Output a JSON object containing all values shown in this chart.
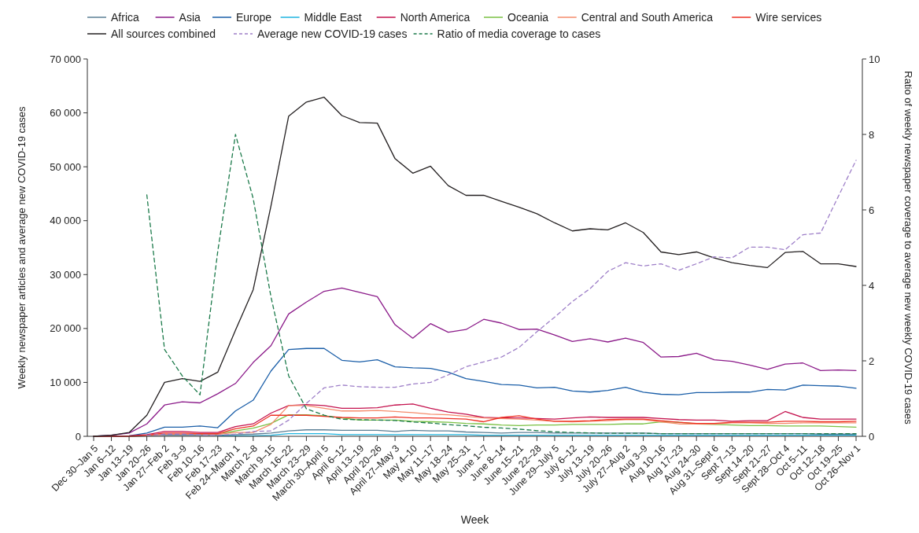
{
  "chart_data": {
    "type": "line",
    "xlabel": "Week",
    "ylabel": "Weekly newspaper articles and average new COVID-19 cases",
    "y2label": "Ratio of weekly newspaper coverage to average new weekly COVID-19 cases",
    "categories": [
      "Dec 30–Jan 5",
      "Jan 6–12",
      "Jan 13–19",
      "Jan 20–26",
      "Jan 27–Feb 2",
      "Feb 3–9",
      "Feb 10–16",
      "Feb 17–23",
      "Feb 24–March 1",
      "March 2–8",
      "March 9–15",
      "March 16–22",
      "March 23–29",
      "March 30–April 5",
      "April 6–12",
      "April 13–19",
      "April 20–26",
      "April 27–May 3",
      "May 4–10",
      "May 11–17",
      "May 18–24",
      "May 25–31",
      "June 1–7",
      "June 8–14",
      "June 15–21",
      "June 22–28",
      "June 29–July 5",
      "July 6–12",
      "July 13–19",
      "July 20–26",
      "July 27–Aug 2",
      "Aug 3–9",
      "Aug 10–16",
      "Aug 17–23",
      "Aug 24–30",
      "Aug 31–Sept 6",
      "Sept 7–13",
      "Sept 14–20",
      "Sept 21–27",
      "Sept 28–Oct 4",
      "Oct 5–11",
      "Oct 12–18",
      "Oct 19–25",
      "Oct 26–Nov 1"
    ],
    "ylim": [
      0,
      70000
    ],
    "yticks": [
      0,
      {
        "value": 10000,
        "label": "10 000"
      },
      {
        "value": 20000,
        "label": "20 000"
      },
      {
        "value": 30000,
        "label": "30 000"
      },
      {
        "value": 40000,
        "label": "40 000"
      },
      {
        "value": 50000,
        "label": "50 000"
      },
      {
        "value": 60000,
        "label": "60 000"
      },
      {
        "value": 70000,
        "label": "70 000"
      }
    ],
    "y2lim": [
      0,
      10
    ],
    "y2ticks": [
      0,
      2,
      4,
      6,
      8,
      10
    ],
    "grid": false,
    "legend": "top",
    "marker": "none",
    "series": [
      {
        "name": "Africa",
        "color": "#5b7f95",
        "values": [
          0,
          0,
          0,
          100,
          200,
          200,
          200,
          200,
          300,
          400,
          600,
          1000,
          1200,
          1200,
          1100,
          1100,
          1100,
          900,
          1100,
          1000,
          1000,
          800,
          700,
          600,
          700,
          700,
          600,
          600,
          600,
          600,
          600,
          600,
          500,
          500,
          500,
          500,
          500,
          500,
          500,
          500,
          500,
          400,
          400,
          400
        ]
      },
      {
        "name": "Asia",
        "color": "#8b1a89",
        "values": [
          0,
          200,
          600,
          2300,
          5800,
          6400,
          6200,
          7900,
          9800,
          13700,
          16800,
          22700,
          24900,
          26900,
          27500,
          26700,
          25900,
          20700,
          18200,
          20900,
          19300,
          19800,
          21700,
          21000,
          19800,
          19900,
          18800,
          17600,
          18100,
          17500,
          18200,
          17400,
          14700,
          14800,
          15400,
          14200,
          13900,
          13200,
          12400,
          13400,
          13600,
          12200,
          12300,
          12200
        ]
      },
      {
        "name": "Europe",
        "color": "#1a5ea8",
        "values": [
          0,
          0,
          100,
          600,
          1700,
          1700,
          1900,
          1600,
          4700,
          6700,
          12100,
          16100,
          16300,
          16300,
          14100,
          13800,
          14200,
          12900,
          12700,
          12600,
          11900,
          10700,
          10200,
          9600,
          9500,
          9000,
          9100,
          8400,
          8200,
          8500,
          9100,
          8200,
          7800,
          7700,
          8100,
          8100,
          8200,
          8200,
          8700,
          8600,
          9500,
          9400,
          9300,
          8900
        ]
      },
      {
        "name": "Middle East",
        "color": "#1fb5e0",
        "values": [
          null,
          null,
          null,
          null,
          null,
          null,
          null,
          100,
          100,
          100,
          200,
          500,
          500,
          500,
          300,
          300,
          300,
          300,
          300,
          300,
          300,
          300,
          200,
          200,
          200,
          200,
          200,
          200,
          200,
          200,
          200,
          200,
          200,
          200,
          200,
          200,
          200,
          200,
          200,
          200,
          200,
          200,
          200,
          200
        ]
      },
      {
        "name": "North America",
        "color": "#c4124e",
        "values": [
          0,
          0,
          100,
          300,
          900,
          900,
          700,
          700,
          1800,
          2300,
          4300,
          5700,
          5900,
          5700,
          5200,
          5200,
          5300,
          5800,
          6000,
          5200,
          4500,
          4100,
          3500,
          3400,
          3400,
          3300,
          3200,
          3400,
          3600,
          3500,
          3500,
          3500,
          3300,
          3100,
          3000,
          3000,
          2800,
          2900,
          2900,
          4600,
          3500,
          3200,
          3200,
          3200
        ]
      },
      {
        "name": "Oceania",
        "color": "#7ac143",
        "values": [
          null,
          null,
          null,
          null,
          null,
          null,
          400,
          400,
          1000,
          1500,
          2400,
          4000,
          4000,
          3800,
          3400,
          3000,
          3000,
          3000,
          2800,
          2700,
          2600,
          2400,
          2300,
          2100,
          2000,
          2100,
          2100,
          2200,
          2200,
          2200,
          2300,
          2300,
          2700,
          2600,
          2300,
          2200,
          2100,
          2000,
          2000,
          1900,
          1900,
          1900,
          1800,
          1700
        ]
      },
      {
        "name": "Central and South America",
        "color": "#f58b6b",
        "values": [
          null,
          null,
          0,
          100,
          400,
          400,
          400,
          400,
          700,
          700,
          2200,
          5700,
          5700,
          5200,
          4700,
          4700,
          4800,
          4600,
          4400,
          4100,
          4000,
          3700,
          3400,
          3300,
          3200,
          3000,
          2800,
          2700,
          2800,
          2900,
          3100,
          3100,
          2700,
          2300,
          2300,
          2300,
          2500,
          2500,
          2400,
          2400,
          2500,
          2500,
          2500,
          2500
        ]
      },
      {
        "name": "Wire services",
        "color": "#ee3124",
        "values": [
          0,
          0,
          0,
          200,
          600,
          600,
          500,
          500,
          1400,
          1900,
          3900,
          3900,
          3900,
          3700,
          3500,
          3400,
          3400,
          3600,
          3400,
          3400,
          3300,
          3200,
          2700,
          3500,
          3800,
          3200,
          2800,
          2800,
          2900,
          3100,
          3200,
          3200,
          2900,
          2600,
          2400,
          2400,
          2600,
          2600,
          2600,
          2800,
          2800,
          2700,
          2700,
          2800
        ]
      },
      {
        "name": "All sources combined",
        "color": "#231f20",
        "values": [
          0,
          200,
          700,
          3900,
          10000,
          10700,
          10200,
          11900,
          19700,
          27200,
          42700,
          59400,
          62000,
          62900,
          59500,
          58200,
          58100,
          51500,
          48800,
          50100,
          46500,
          44700,
          44700,
          43600,
          42500,
          41300,
          39600,
          38100,
          38500,
          38300,
          39600,
          37800,
          34200,
          33700,
          34200,
          33100,
          32200,
          31700,
          31300,
          34100,
          34300,
          32000,
          32000,
          31500
        ]
      },
      {
        "name": "Average new COVID-19 cases",
        "color": "#9e7fc8",
        "line_style": "dashed",
        "values": [
          null,
          null,
          null,
          200,
          400,
          400,
          300,
          200,
          400,
          900,
          1000,
          3000,
          6100,
          9000,
          9500,
          9200,
          9100,
          9100,
          9700,
          10000,
          11400,
          12900,
          13800,
          14700,
          16500,
          19400,
          22100,
          25000,
          27400,
          30600,
          32200,
          31600,
          32000,
          30800,
          32000,
          33300,
          33100,
          35100,
          35100,
          34600,
          37400,
          37700,
          44500,
          51200
        ]
      },
      {
        "name": "Ratio of media coverage to cases",
        "color": "#1b7a4a",
        "line_style": "dashed",
        "axis": "y2",
        "values": [
          null,
          null,
          null,
          6.4,
          2.3,
          1.6,
          1.1,
          4.9,
          8.0,
          6.3,
          3.7,
          1.6,
          0.73,
          0.56,
          0.45,
          0.44,
          0.43,
          0.42,
          0.38,
          0.35,
          0.31,
          0.28,
          0.24,
          0.22,
          0.19,
          0.15,
          0.12,
          0.1,
          0.09,
          0.08,
          0.08,
          0.08,
          0.07,
          0.07,
          0.07,
          0.07,
          0.07,
          0.07,
          0.07,
          0.07,
          0.07,
          0.07,
          0.07,
          0.07
        ]
      }
    ]
  }
}
